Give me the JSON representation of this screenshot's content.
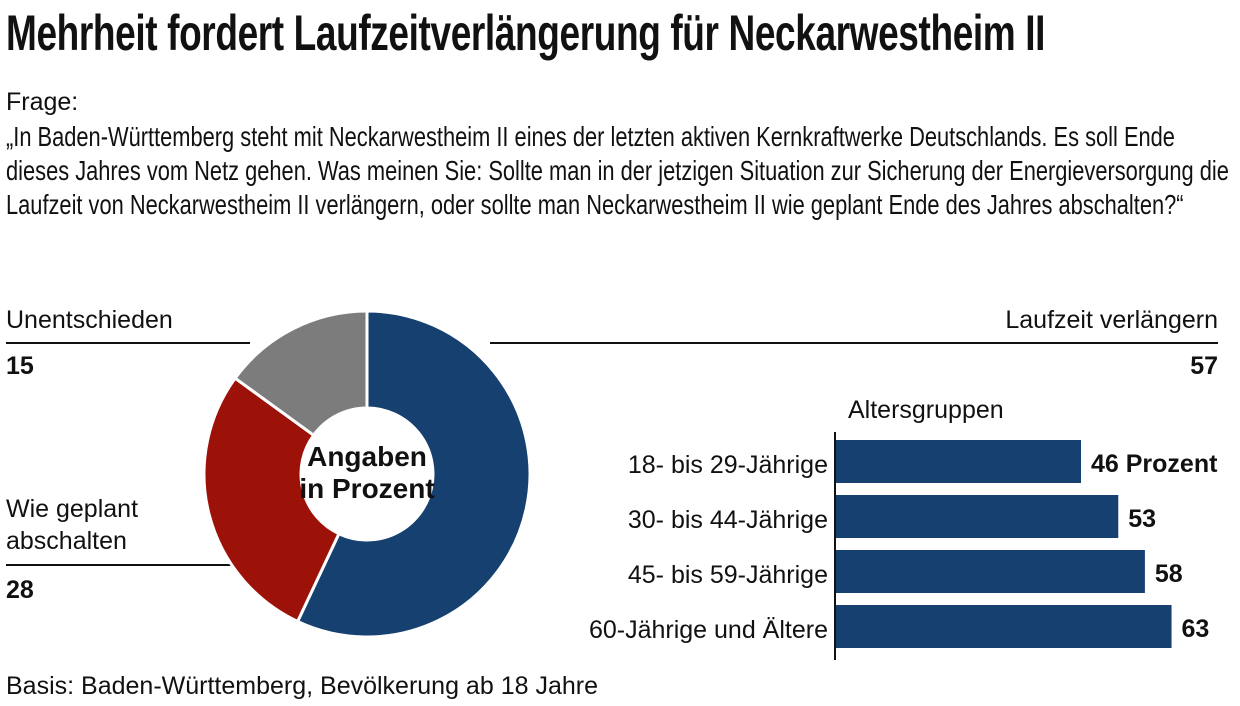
{
  "title": "Mehrheit fordert Laufzeitverlängerung für Neckarwestheim II",
  "question_label": "Frage:",
  "question": "„In Baden-Württemberg steht mit Neckarwestheim II eines der letzten aktiven Kernkraftwerke Deutschlands. Es soll Ende dieses Jahres vom Netz gehen. Was meinen Sie: Sollte man in der jetzigen Situation zur Sicherung der Energieversorgung die Laufzeit von Neckarwestheim II verlängern, oder sollte man Neckarwestheim II wie geplant Ende des Jahres abschalten?“",
  "footer": "Basis: Baden-Württemberg, Bevölkerung ab 18 Jahre",
  "chart_data": [
    {
      "type": "pie",
      "variant": "donut",
      "center_label": [
        "Angaben",
        "in Prozent"
      ],
      "slices": [
        {
          "label": "Laufzeit verlängern",
          "value": 57,
          "color": "#16406f"
        },
        {
          "label": "Wie geplant abschalten",
          "value": 28,
          "color": "#9c1208"
        },
        {
          "label": "Unentschieden",
          "value": 15,
          "color": "#7c7c7c"
        }
      ],
      "value_labels": [
        "57",
        "28",
        "15"
      ]
    },
    {
      "type": "bar",
      "orientation": "horizontal",
      "title": "Altersgruppen",
      "categories": [
        "18- bis 29-Jährige",
        "30- bis 44-Jährige",
        "45- bis 59-Jährige",
        "60-Jährige und Ältere"
      ],
      "values": [
        46,
        53,
        58,
        63
      ],
      "value_labels": [
        "46 Prozent",
        "53",
        "58",
        "63"
      ],
      "color": "#16406f"
    }
  ]
}
